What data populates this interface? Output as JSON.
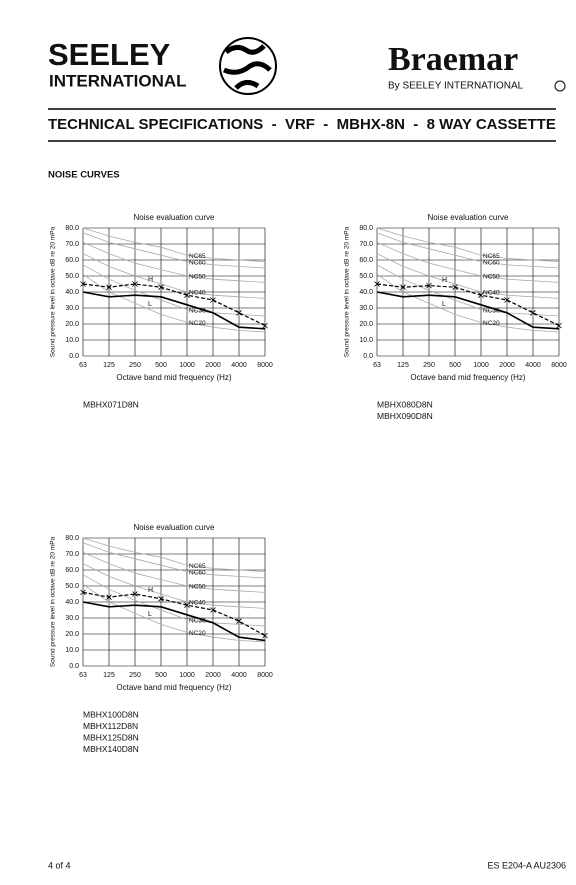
{
  "header": {
    "logo_left_1": "SEELEY",
    "logo_left_2": "INTERNATIONAL",
    "logo_right": "Braemar",
    "logo_right_sub": "By SEELEY INTERNATIONAL",
    "title": "TECHNICAL SPECIFICATIONS  -  VRF  -  MBHX-8N  -  8 WAY CASSETTE"
  },
  "section": "NOISE CURVES",
  "footer": {
    "page": "4 of 4",
    "code": "ES E204-A AU2306"
  },
  "chart_data": [
    {
      "type": "line",
      "title": "Noise evaluation curve",
      "x_label": "Octave band mid frequency (Hz)",
      "y_label": "Sound pressure level in octave dB re 20 mPa",
      "categories": [
        "63",
        "125",
        "250",
        "500",
        "1000",
        "2000",
        "4000",
        "8000"
      ],
      "ylim": [
        0,
        80
      ],
      "yticks": [
        {
          "value": 0,
          "label": "0.0"
        },
        {
          "value": 10,
          "label": "10.0"
        },
        {
          "value": 20,
          "label": "20.0"
        },
        {
          "value": 30,
          "label": "30.0"
        },
        {
          "value": 40,
          "label": "40.0"
        },
        {
          "value": 50,
          "label": "50.0"
        },
        {
          "value": 60,
          "label": "60.0"
        },
        {
          "value": 70,
          "label": "70.0"
        },
        {
          "value": 80,
          "label": "80.0"
        }
      ],
      "grid": true,
      "models": [
        "MBHX071D8N"
      ],
      "series": [
        {
          "name": "NC65",
          "color": "#aaaaaa",
          "values": [
            80,
            75,
            71,
            68,
            63,
            61,
            60,
            59
          ]
        },
        {
          "name": "NC60",
          "color": "#aaaaaa",
          "values": [
            77,
            71,
            67,
            63,
            59,
            57,
            56,
            55
          ]
        },
        {
          "name": "NC50",
          "color": "#aaaaaa",
          "values": [
            71,
            64,
            58,
            54,
            50,
            48,
            47,
            46
          ]
        },
        {
          "name": "NC40",
          "color": "#aaaaaa",
          "values": [
            64,
            56,
            50,
            45,
            40,
            38,
            37,
            36
          ]
        },
        {
          "name": "NC30",
          "color": "#aaaaaa",
          "values": [
            57,
            48,
            41,
            35,
            29,
            27,
            26,
            25
          ]
        },
        {
          "name": "NC20",
          "color": "#aaaaaa",
          "values": [
            51,
            40,
            33,
            26,
            21,
            18,
            16,
            15
          ]
        },
        {
          "name": "H",
          "color": "#000000",
          "dashed": true,
          "values": [
            45,
            43,
            45,
            43,
            38,
            35,
            27,
            19
          ]
        },
        {
          "name": "L",
          "color": "#000000",
          "values": [
            40,
            37,
            38,
            37,
            32,
            27,
            18,
            17
          ]
        }
      ]
    },
    {
      "type": "line",
      "title": "Noise evaluation curve",
      "x_label": "Octave band mid frequency (Hz)",
      "y_label": "Sound pressure level in octave dB re 20 mPa",
      "categories": [
        "63",
        "125",
        "250",
        "500",
        "1000",
        "2000",
        "4000",
        "8000"
      ],
      "ylim": [
        0,
        80
      ],
      "yticks": [
        {
          "value": 0,
          "label": "0.0"
        },
        {
          "value": 10,
          "label": "10.0"
        },
        {
          "value": 20,
          "label": "20.0"
        },
        {
          "value": 30,
          "label": "30.0"
        },
        {
          "value": 40,
          "label": "40.0"
        },
        {
          "value": 50,
          "label": "50.0"
        },
        {
          "value": 60,
          "label": "60.0"
        },
        {
          "value": 70,
          "label": "70.0"
        },
        {
          "value": 80,
          "label": "80.0"
        }
      ],
      "grid": true,
      "models": [
        "MBHX080D8N",
        "MBHX090D8N"
      ],
      "series": [
        {
          "name": "NC65",
          "color": "#aaaaaa",
          "values": [
            80,
            75,
            71,
            68,
            63,
            61,
            60,
            59
          ]
        },
        {
          "name": "NC60",
          "color": "#aaaaaa",
          "values": [
            77,
            71,
            67,
            63,
            59,
            57,
            56,
            55
          ]
        },
        {
          "name": "NC50",
          "color": "#aaaaaa",
          "values": [
            71,
            64,
            58,
            54,
            50,
            48,
            47,
            46
          ]
        },
        {
          "name": "NC40",
          "color": "#aaaaaa",
          "values": [
            64,
            56,
            50,
            45,
            40,
            38,
            37,
            36
          ]
        },
        {
          "name": "NC30",
          "color": "#aaaaaa",
          "values": [
            57,
            48,
            41,
            35,
            29,
            27,
            26,
            25
          ]
        },
        {
          "name": "NC20",
          "color": "#aaaaaa",
          "values": [
            51,
            40,
            33,
            26,
            21,
            18,
            16,
            15
          ]
        },
        {
          "name": "H",
          "color": "#000000",
          "dashed": true,
          "values": [
            45,
            43,
            44,
            43,
            38,
            35,
            27,
            19
          ]
        },
        {
          "name": "L",
          "color": "#000000",
          "values": [
            40,
            37,
            38,
            37,
            32,
            27,
            18,
            17
          ]
        }
      ]
    },
    {
      "type": "line",
      "title": "Noise evaluation curve",
      "x_label": "Octave band mid frequency (Hz)",
      "y_label": "Sound pressure level in octave dB re 20 mPa",
      "categories": [
        "63",
        "125",
        "250",
        "500",
        "1000",
        "2000",
        "4000",
        "8000"
      ],
      "ylim": [
        0,
        80
      ],
      "yticks": [
        {
          "value": 0,
          "label": "0.0"
        },
        {
          "value": 10,
          "label": "10.0"
        },
        {
          "value": 20,
          "label": "20.0"
        },
        {
          "value": 30,
          "label": "30.0"
        },
        {
          "value": 40,
          "label": "40.0"
        },
        {
          "value": 50,
          "label": "50.0"
        },
        {
          "value": 60,
          "label": "60.0"
        },
        {
          "value": 70,
          "label": "70.0"
        },
        {
          "value": 80,
          "label": "80.0"
        }
      ],
      "grid": true,
      "models": [
        "MBHX100D8N",
        "MBHX112D8N",
        "MBHX125D8N",
        "MBHX140D8N"
      ],
      "series": [
        {
          "name": "NC65",
          "color": "#aaaaaa",
          "values": [
            80,
            75,
            71,
            68,
            63,
            61,
            60,
            59
          ]
        },
        {
          "name": "NC60",
          "color": "#aaaaaa",
          "values": [
            77,
            71,
            67,
            63,
            59,
            57,
            56,
            55
          ]
        },
        {
          "name": "NC50",
          "color": "#aaaaaa",
          "values": [
            71,
            64,
            58,
            54,
            50,
            48,
            47,
            46
          ]
        },
        {
          "name": "NC40",
          "color": "#aaaaaa",
          "values": [
            64,
            56,
            50,
            45,
            40,
            38,
            37,
            36
          ]
        },
        {
          "name": "NC30",
          "color": "#aaaaaa",
          "values": [
            57,
            48,
            41,
            35,
            29,
            27,
            26,
            25
          ]
        },
        {
          "name": "NC20",
          "color": "#aaaaaa",
          "values": [
            51,
            40,
            33,
            26,
            21,
            18,
            16,
            15
          ]
        },
        {
          "name": "H",
          "color": "#000000",
          "dashed": true,
          "values": [
            46,
            43,
            45,
            42,
            38,
            35,
            28,
            19
          ]
        },
        {
          "name": "L",
          "color": "#000000",
          "values": [
            40,
            37,
            38,
            37,
            32,
            27,
            18,
            16
          ]
        }
      ]
    }
  ]
}
